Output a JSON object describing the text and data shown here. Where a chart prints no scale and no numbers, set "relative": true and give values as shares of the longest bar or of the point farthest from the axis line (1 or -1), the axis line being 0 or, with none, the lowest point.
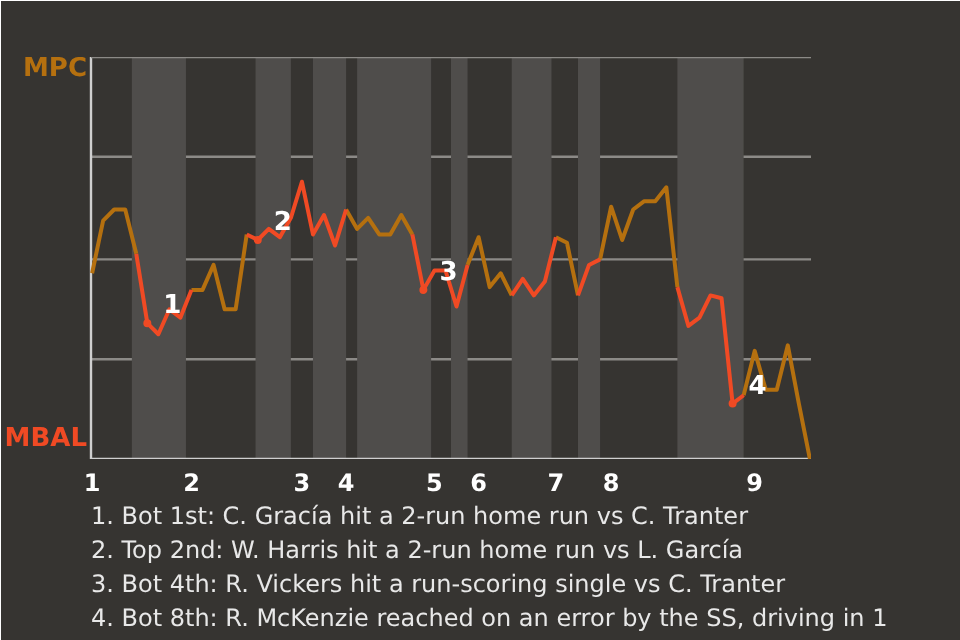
{
  "chart_data": {
    "type": "line",
    "relative": true,
    "categories": [
      "1",
      null,
      null,
      null,
      null,
      null,
      null,
      null,
      null,
      "2",
      null,
      null,
      null,
      null,
      null,
      null,
      null,
      null,
      null,
      "3",
      null,
      null,
      null,
      "4",
      null,
      null,
      null,
      null,
      null,
      null,
      null,
      "5",
      null,
      null,
      null,
      "6",
      null,
      null,
      null,
      null,
      null,
      null,
      "7",
      null,
      null,
      null,
      null,
      "8",
      null,
      null,
      null,
      null,
      null,
      null,
      null,
      null,
      null,
      null,
      null,
      null,
      "9",
      null,
      null,
      null,
      null,
      null
    ],
    "series": [
      {
        "color": "#b5700f",
        "values": [
          0.67,
          0.86,
          0.9,
          0.9,
          0.74,
          null,
          null,
          null,
          null,
          0.61,
          0.61,
          0.7,
          0.54,
          0.54,
          0.81,
          null,
          null,
          null,
          null,
          null,
          null,
          null,
          null,
          0.9,
          0.83,
          0.87,
          0.81,
          0.81,
          0.88,
          0.81,
          null,
          null,
          null,
          null,
          0.7,
          0.8,
          0.62,
          0.67,
          0.59,
          null,
          null,
          null,
          0.8,
          0.78,
          0.59,
          null,
          0.72,
          0.91,
          0.79,
          0.9,
          0.93,
          0.93,
          0.98,
          0.62,
          null,
          null,
          null,
          null,
          null,
          0.23,
          0.39,
          0.25,
          0.25,
          0.41,
          0.2,
          0
        ]
      },
      {
        "color": "#f04a24",
        "values": [
          null,
          null,
          null,
          null,
          0.74,
          0.49,
          0.45,
          0.54,
          0.51,
          0.61,
          null,
          null,
          null,
          null,
          0.81,
          0.79,
          0.83,
          0.8,
          0.87,
          1,
          0.81,
          0.88,
          0.77,
          0.9,
          null,
          null,
          null,
          null,
          null,
          0.81,
          0.61,
          0.68,
          0.68,
          0.55,
          0.7,
          null,
          null,
          null,
          0.59,
          0.65,
          0.59,
          0.64,
          0.8,
          null,
          0.59,
          0.7,
          0.72,
          null,
          null,
          null,
          null,
          null,
          null,
          0.62,
          0.48,
          0.51,
          0.59,
          0.58,
          0.2,
          0.23,
          null,
          null,
          null,
          null,
          null,
          null
        ]
      },
      {
        "type": "scatter",
        "name": "1",
        "color": "#f04a24",
        "values": [
          null,
          null,
          null,
          null,
          null,
          0.49,
          null,
          null,
          null,
          null,
          null,
          null,
          null,
          null,
          null,
          null,
          null,
          null,
          null,
          null,
          null,
          null,
          null,
          null,
          null,
          null,
          null,
          null,
          null,
          null,
          null,
          null,
          null,
          null,
          null,
          null,
          null,
          null,
          null,
          null,
          null,
          null,
          null,
          null,
          null,
          null,
          null,
          null,
          null,
          null,
          null,
          null,
          null,
          null,
          null,
          null,
          null,
          null,
          null,
          null,
          null,
          null,
          null,
          null,
          null,
          null
        ]
      },
      {
        "type": "scatter",
        "name": "2",
        "color": "#f04a24",
        "values": [
          null,
          null,
          null,
          null,
          null,
          null,
          null,
          null,
          null,
          null,
          null,
          null,
          null,
          null,
          null,
          0.79,
          null,
          null,
          null,
          null,
          null,
          null,
          null,
          null,
          null,
          null,
          null,
          null,
          null,
          null,
          null,
          null,
          null,
          null,
          null,
          null,
          null,
          null,
          null,
          null,
          null,
          null,
          null,
          null,
          null,
          null,
          null,
          null,
          null,
          null,
          null,
          null,
          null,
          null,
          null,
          null,
          null,
          null,
          null,
          null,
          null,
          null,
          null,
          null,
          null,
          null
        ]
      },
      {
        "type": "scatter",
        "name": "3",
        "color": "#f04a24",
        "values": [
          null,
          null,
          null,
          null,
          null,
          null,
          null,
          null,
          null,
          null,
          null,
          null,
          null,
          null,
          null,
          null,
          null,
          null,
          null,
          null,
          null,
          null,
          null,
          null,
          null,
          null,
          null,
          null,
          null,
          null,
          0.61,
          null,
          null,
          null,
          null,
          null,
          null,
          null,
          null,
          null,
          null,
          null,
          null,
          null,
          null,
          null,
          null,
          null,
          null,
          null,
          null,
          null,
          null,
          null,
          null,
          null,
          null,
          null,
          null,
          null,
          null,
          null,
          null,
          null,
          null,
          null
        ]
      },
      {
        "type": "scatter",
        "name": "4",
        "color": "#f04a24",
        "values": [
          null,
          null,
          null,
          null,
          null,
          null,
          null,
          null,
          null,
          null,
          null,
          null,
          null,
          null,
          null,
          null,
          null,
          null,
          null,
          null,
          null,
          null,
          null,
          null,
          null,
          null,
          null,
          null,
          null,
          null,
          null,
          null,
          null,
          null,
          null,
          null,
          null,
          null,
          null,
          null,
          null,
          null,
          null,
          null,
          null,
          null,
          null,
          null,
          null,
          null,
          null,
          null,
          null,
          null,
          null,
          null,
          null,
          null,
          0.2,
          null,
          null,
          null,
          null,
          null,
          null,
          null
        ]
      }
    ],
    "ref_lines": [
      {
        "axis": "y",
        "value": 0.36,
        "color": "#8c8a87"
      },
      {
        "axis": "y",
        "value": 0.72,
        "color": "#8c8a87"
      },
      {
        "axis": "y",
        "value": 1.09,
        "color": "#8c8a87"
      }
    ],
    "annotations": [
      "MPC",
      "MBAL",
      "1. Bot 1st: C. Gracía hit a 2-run home run vs C. Tranter",
      "2. Top 2nd: W. Harris hit a 2-run home run vs L. García",
      "3. Bot 4th: R. Vickers hit a run-scoring single vs C. Tranter",
      "4. Bot 8th: R. McKenzie reached on an error by the SS, driving in 1"
    ]
  }
}
